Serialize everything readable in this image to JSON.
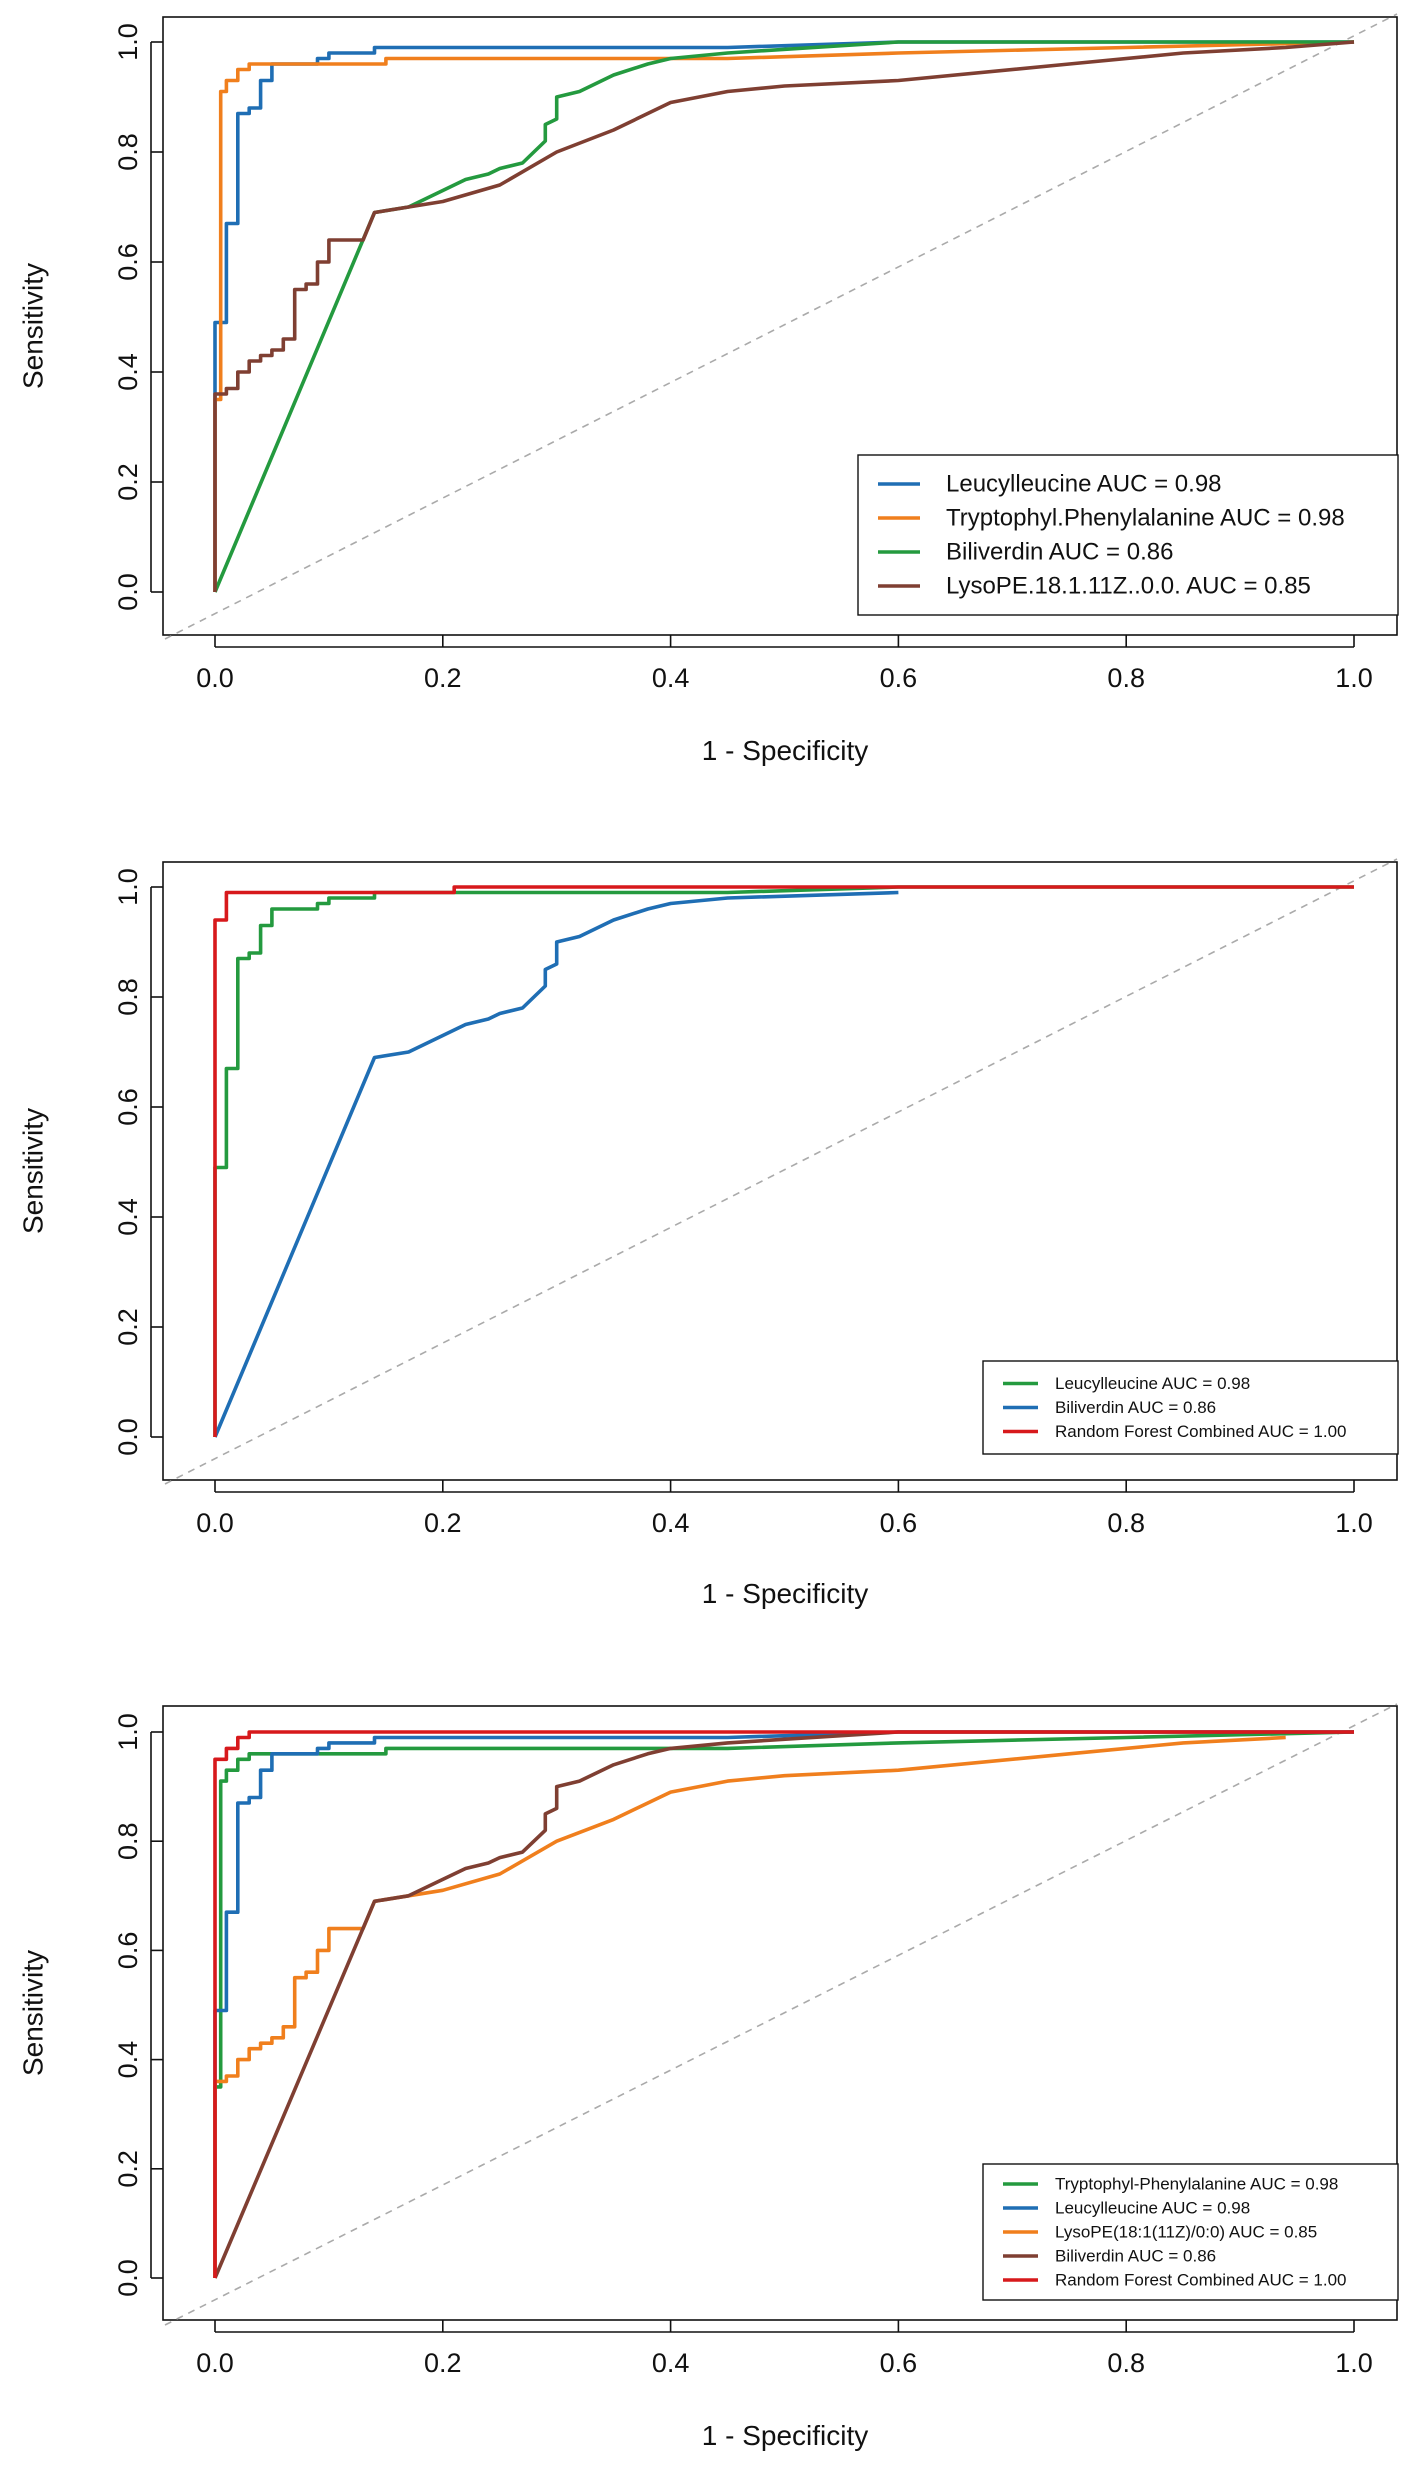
{
  "chart_data": [
    {
      "type": "line",
      "title": "",
      "xlabel": "1 - Specificity",
      "ylabel": "Sensitivity",
      "xlim": [
        0,
        1
      ],
      "ylim": [
        0,
        1
      ],
      "xticks": [
        "0.0",
        "0.2",
        "0.4",
        "0.6",
        "0.8",
        "1.0"
      ],
      "yticks": [
        "0.0",
        "0.2",
        "0.4",
        "0.6",
        "0.8",
        "1.0"
      ],
      "grid": false,
      "reference_line": "diagonal dashed",
      "legend_position": "bottom-right",
      "legend_size": "large",
      "series": [
        {
          "name": "Leucylleucine AUC = 0.98",
          "color": "#1f6eb4",
          "x": [
            0,
            0,
            0.01,
            0.01,
            0.02,
            0.02,
            0.03,
            0.03,
            0.04,
            0.04,
            0.05,
            0.05,
            0.09,
            0.09,
            0.1,
            0.1,
            0.14,
            0.14,
            0.45,
            0.6,
            1.0
          ],
          "y": [
            0,
            0.49,
            0.49,
            0.67,
            0.67,
            0.87,
            0.87,
            0.88,
            0.88,
            0.93,
            0.93,
            0.96,
            0.96,
            0.97,
            0.97,
            0.98,
            0.98,
            0.99,
            0.99,
            1.0,
            1.0
          ]
        },
        {
          "name": "Tryptophyl.Phenylalanine AUC = 0.98",
          "color": "#f07f1d",
          "x": [
            0,
            0,
            0.005,
            0.005,
            0.01,
            0.01,
            0.02,
            0.02,
            0.03,
            0.03,
            0.15,
            0.15,
            0.45,
            0.6,
            0.8,
            1.0
          ],
          "y": [
            0,
            0.35,
            0.35,
            0.91,
            0.91,
            0.93,
            0.93,
            0.95,
            0.95,
            0.96,
            0.96,
            0.97,
            0.97,
            0.98,
            0.99,
            1.0
          ]
        },
        {
          "name": "Biliverdin AUC = 0.86",
          "color": "#249a3f",
          "x": [
            0,
            0.14,
            0.17,
            0.2,
            0.22,
            0.24,
            0.25,
            0.27,
            0.28,
            0.29,
            0.29,
            0.3,
            0.3,
            0.32,
            0.35,
            0.38,
            0.4,
            0.45,
            0.6,
            1.0
          ],
          "y": [
            0,
            0.69,
            0.7,
            0.73,
            0.75,
            0.76,
            0.77,
            0.78,
            0.8,
            0.82,
            0.85,
            0.86,
            0.9,
            0.91,
            0.94,
            0.96,
            0.97,
            0.98,
            1.0,
            1.0
          ]
        },
        {
          "name": "LysoPE.18.1.11Z..0.0. AUC = 0.85",
          "color": "#7f3f32",
          "x": [
            0,
            0,
            0.01,
            0.01,
            0.02,
            0.02,
            0.03,
            0.03,
            0.04,
            0.04,
            0.05,
            0.05,
            0.06,
            0.06,
            0.07,
            0.07,
            0.08,
            0.08,
            0.09,
            0.09,
            0.1,
            0.1,
            0.13,
            0.14,
            0.2,
            0.25,
            0.3,
            0.35,
            0.4,
            0.45,
            0.5,
            0.6,
            0.75,
            0.85,
            0.94,
            1.0
          ],
          "y": [
            0,
            0.36,
            0.36,
            0.37,
            0.37,
            0.4,
            0.4,
            0.42,
            0.42,
            0.43,
            0.43,
            0.44,
            0.44,
            0.46,
            0.46,
            0.55,
            0.55,
            0.56,
            0.56,
            0.6,
            0.6,
            0.64,
            0.64,
            0.69,
            0.71,
            0.74,
            0.8,
            0.84,
            0.89,
            0.91,
            0.92,
            0.93,
            0.96,
            0.98,
            0.99,
            1.0
          ]
        }
      ]
    },
    {
      "type": "line",
      "title": "",
      "xlabel": "1 - Specificity",
      "ylabel": "Sensitivity",
      "xlim": [
        0,
        1
      ],
      "ylim": [
        0,
        1
      ],
      "xticks": [
        "0.0",
        "0.2",
        "0.4",
        "0.6",
        "0.8",
        "1.0"
      ],
      "yticks": [
        "0.0",
        "0.2",
        "0.4",
        "0.6",
        "0.8",
        "1.0"
      ],
      "grid": false,
      "reference_line": "diagonal dashed",
      "legend_position": "bottom-right",
      "legend_size": "small",
      "series": [
        {
          "name": "Leucylleucine AUC = 0.98",
          "color": "#249a3f",
          "x": [
            0,
            0,
            0.01,
            0.01,
            0.02,
            0.02,
            0.03,
            0.03,
            0.04,
            0.04,
            0.05,
            0.05,
            0.09,
            0.09,
            0.1,
            0.1,
            0.14,
            0.14,
            0.45,
            0.6,
            1.0
          ],
          "y": [
            0,
            0.49,
            0.49,
            0.67,
            0.67,
            0.87,
            0.87,
            0.88,
            0.88,
            0.93,
            0.93,
            0.96,
            0.96,
            0.97,
            0.97,
            0.98,
            0.98,
            0.99,
            0.99,
            1.0,
            1.0
          ]
        },
        {
          "name": "Biliverdin AUC = 0.86",
          "color": "#1f6eb4",
          "x": [
            0,
            0.14,
            0.17,
            0.2,
            0.22,
            0.24,
            0.25,
            0.27,
            0.28,
            0.29,
            0.29,
            0.3,
            0.3,
            0.32,
            0.35,
            0.38,
            0.4,
            0.45,
            0.6
          ],
          "y": [
            0,
            0.69,
            0.7,
            0.73,
            0.75,
            0.76,
            0.77,
            0.78,
            0.8,
            0.82,
            0.85,
            0.86,
            0.9,
            0.91,
            0.94,
            0.96,
            0.97,
            0.98,
            0.99
          ]
        },
        {
          "name": "Random Forest Combined AUC = 1.00",
          "color": "#d7191c",
          "x": [
            0,
            0,
            0.01,
            0.01,
            0.21,
            0.21,
            1.0
          ],
          "y": [
            0,
            0.94,
            0.94,
            0.99,
            0.99,
            1.0,
            1.0
          ]
        }
      ]
    },
    {
      "type": "line",
      "title": "",
      "xlabel": "1 - Specificity",
      "ylabel": "Sensitivity",
      "xlim": [
        0,
        1
      ],
      "ylim": [
        0,
        1
      ],
      "xticks": [
        "0.0",
        "0.2",
        "0.4",
        "0.6",
        "0.8",
        "1.0"
      ],
      "yticks": [
        "0.0",
        "0.2",
        "0.4",
        "0.6",
        "0.8",
        "1.0"
      ],
      "grid": false,
      "reference_line": "diagonal dashed",
      "legend_position": "bottom-right",
      "legend_size": "small",
      "series": [
        {
          "name": "Tryptophyl-Phenylalanine AUC = 0.98",
          "color": "#249a3f",
          "x": [
            0,
            0,
            0.005,
            0.005,
            0.01,
            0.01,
            0.02,
            0.02,
            0.03,
            0.03,
            0.15,
            0.15,
            0.45,
            0.6,
            0.8,
            1.0
          ],
          "y": [
            0,
            0.35,
            0.35,
            0.91,
            0.91,
            0.93,
            0.93,
            0.95,
            0.95,
            0.96,
            0.96,
            0.97,
            0.97,
            0.98,
            0.99,
            1.0
          ]
        },
        {
          "name": "Leucylleucine AUC = 0.98",
          "color": "#1f6eb4",
          "x": [
            0,
            0,
            0.01,
            0.01,
            0.02,
            0.02,
            0.03,
            0.03,
            0.04,
            0.04,
            0.05,
            0.05,
            0.09,
            0.09,
            0.1,
            0.1,
            0.14,
            0.14,
            0.45,
            0.6,
            1.0
          ],
          "y": [
            0,
            0.49,
            0.49,
            0.67,
            0.67,
            0.87,
            0.87,
            0.88,
            0.88,
            0.93,
            0.93,
            0.96,
            0.96,
            0.97,
            0.97,
            0.98,
            0.98,
            0.99,
            0.99,
            1.0,
            1.0
          ]
        },
        {
          "name": "LysoPE(18:1(11Z)/0:0) AUC = 0.85",
          "color": "#f07f1d",
          "x": [
            0,
            0,
            0.01,
            0.01,
            0.02,
            0.02,
            0.03,
            0.03,
            0.04,
            0.04,
            0.05,
            0.05,
            0.06,
            0.06,
            0.07,
            0.07,
            0.08,
            0.08,
            0.09,
            0.09,
            0.1,
            0.1,
            0.13,
            0.14,
            0.2,
            0.25,
            0.3,
            0.35,
            0.4,
            0.45,
            0.5,
            0.6,
            0.75,
            0.85,
            0.94
          ],
          "y": [
            0,
            0.36,
            0.36,
            0.37,
            0.37,
            0.4,
            0.4,
            0.42,
            0.42,
            0.43,
            0.43,
            0.44,
            0.44,
            0.46,
            0.46,
            0.55,
            0.55,
            0.56,
            0.56,
            0.6,
            0.6,
            0.64,
            0.64,
            0.69,
            0.71,
            0.74,
            0.8,
            0.84,
            0.89,
            0.91,
            0.92,
            0.93,
            0.96,
            0.98,
            0.99
          ]
        },
        {
          "name": "Biliverdin AUC = 0.86",
          "color": "#7f3f32",
          "x": [
            0,
            0.14,
            0.17,
            0.2,
            0.22,
            0.24,
            0.25,
            0.27,
            0.28,
            0.29,
            0.29,
            0.3,
            0.3,
            0.32,
            0.35,
            0.38,
            0.4,
            0.45,
            0.6,
            1.0
          ],
          "y": [
            0,
            0.69,
            0.7,
            0.73,
            0.75,
            0.76,
            0.77,
            0.78,
            0.8,
            0.82,
            0.85,
            0.86,
            0.9,
            0.91,
            0.94,
            0.96,
            0.97,
            0.98,
            1.0,
            1.0
          ]
        },
        {
          "name": "Random Forest Combined AUC = 1.00",
          "color": "#d7191c",
          "x": [
            0,
            0,
            0.01,
            0.01,
            0.02,
            0.02,
            0.03,
            0.03,
            1.0
          ],
          "y": [
            0,
            0.95,
            0.95,
            0.97,
            0.97,
            0.99,
            0.99,
            1.0,
            1.0
          ]
        }
      ]
    }
  ]
}
